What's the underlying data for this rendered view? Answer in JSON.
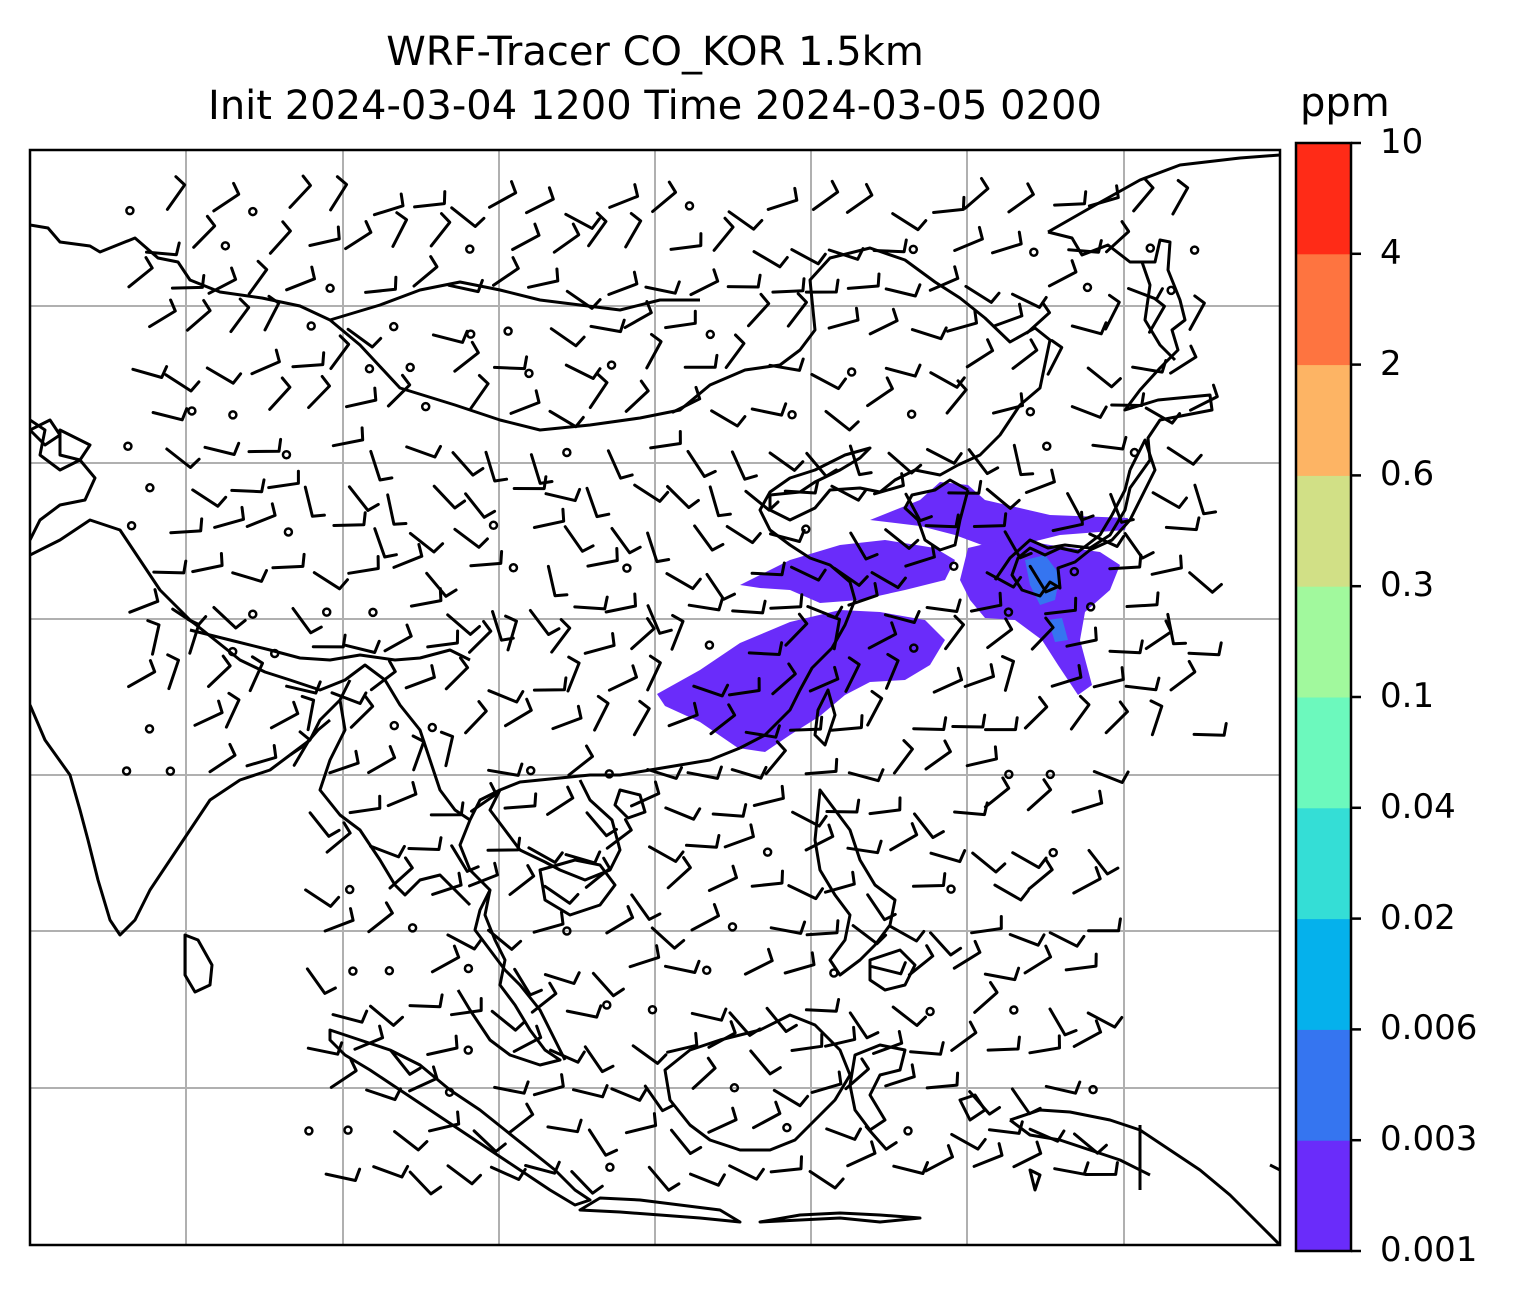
{
  "title": {
    "line1": "WRF-Tracer CO_KOR 1.5km",
    "line2": "Init 2024-03-04 1200 Time 2024-03-05 0200"
  },
  "colorbar": {
    "unit": "ppm",
    "levels": [
      "0.001",
      "0.003",
      "0.006",
      "0.02",
      "0.04",
      "0.1",
      "0.3",
      "0.6",
      "2",
      "4",
      "10"
    ],
    "colors": [
      "#6a2cfa",
      "#3575f0",
      "#05b1ec",
      "#34ded6",
      "#6cf9bd",
      "#a1f99d",
      "#d1e086",
      "#fdb464",
      "#fe7440",
      "#ff2b17"
    ]
  },
  "map": {
    "plume_fill_color": "#6a2cfa",
    "plume_accent_color": "#3575f0",
    "gridline_color": "#b0b0b0",
    "barb_color": "#000000"
  }
}
